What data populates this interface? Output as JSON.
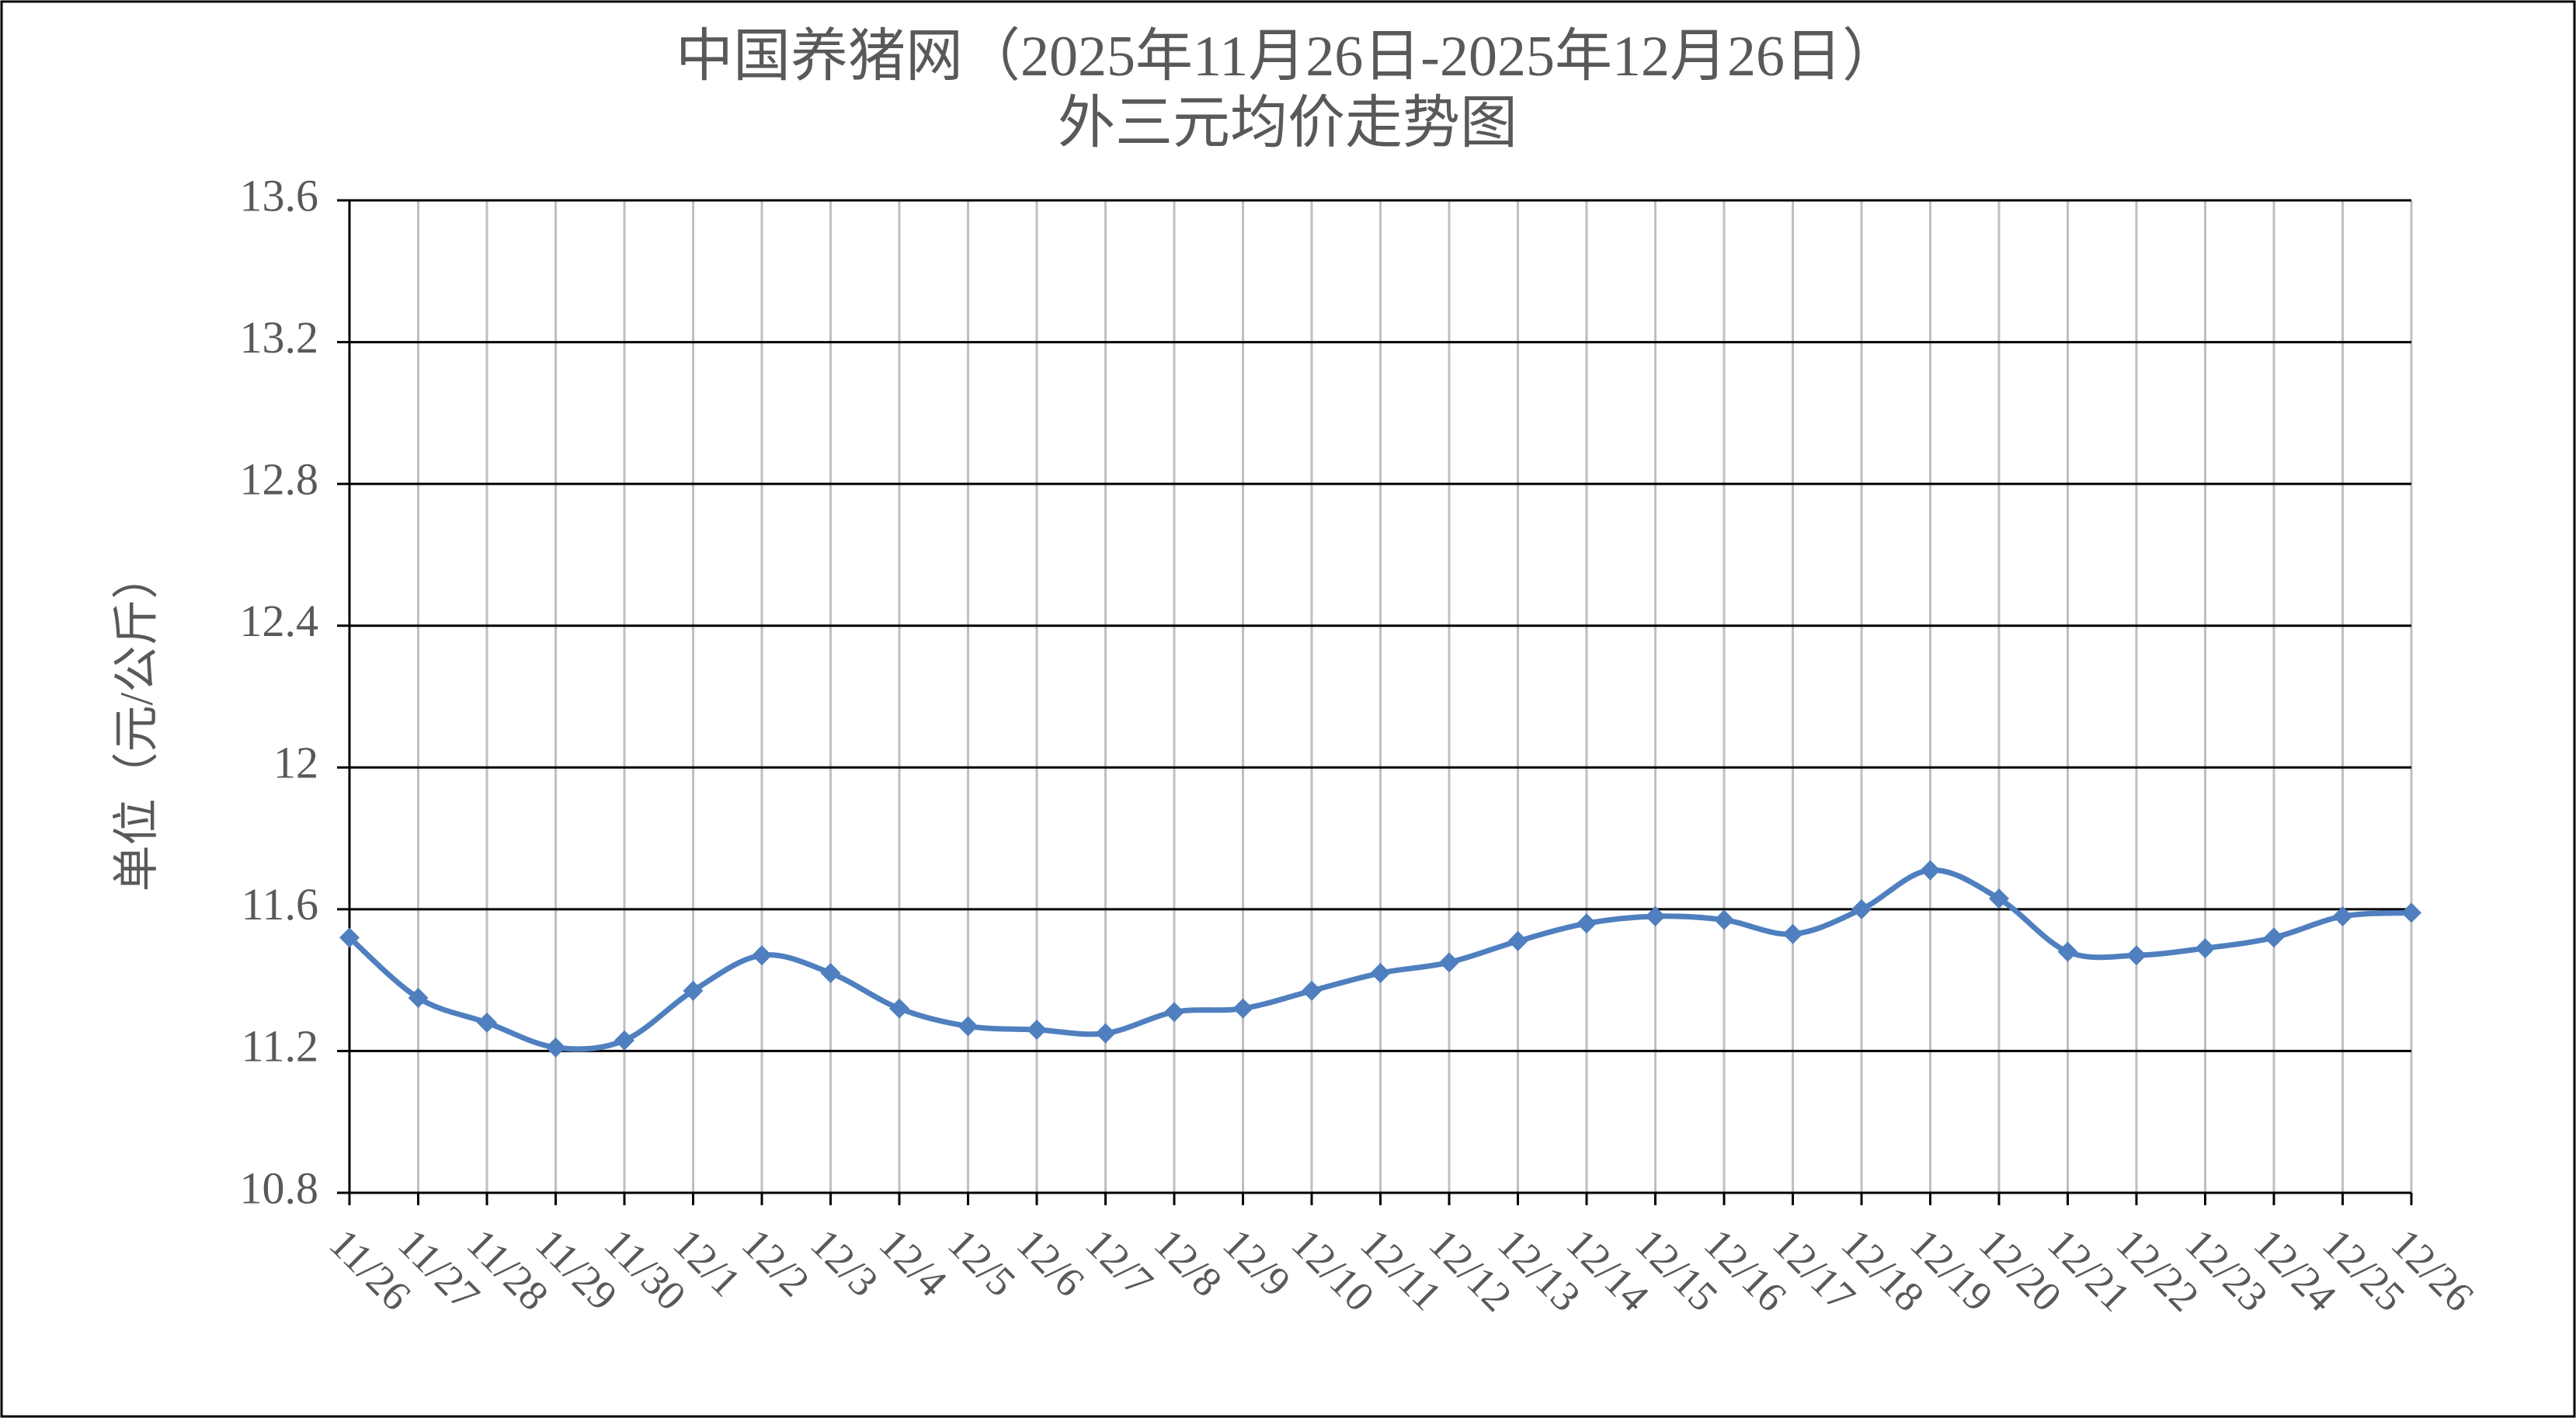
{
  "chart_data": {
    "type": "line",
    "title": [
      "中国养猪网（2025年11月26日-2025年12月26日）",
      "外三元均价走势图"
    ],
    "y_label": "单位（元/公斤）",
    "categories": [
      "11/26",
      "11/27",
      "11/28",
      "11/29",
      "11/30",
      "12/1",
      "12/2",
      "12/3",
      "12/4",
      "12/5",
      "12/6",
      "12/7",
      "12/8",
      "12/9",
      "12/10",
      "12/11",
      "12/12",
      "12/13",
      "12/14",
      "12/15",
      "12/16",
      "12/17",
      "12/18",
      "12/19",
      "12/20",
      "12/21",
      "12/22",
      "12/23",
      "12/24",
      "12/25",
      "12/26"
    ],
    "series": [
      {
        "name": "外三元",
        "color": "#4f7fbf",
        "values": [
          11.52,
          11.35,
          11.28,
          11.21,
          11.23,
          11.37,
          11.47,
          11.42,
          11.32,
          11.27,
          11.26,
          11.25,
          11.31,
          11.32,
          11.37,
          11.42,
          11.45,
          11.51,
          11.56,
          11.58,
          11.57,
          11.53,
          11.6,
          11.71,
          11.63,
          11.48,
          11.47,
          11.49,
          11.52,
          11.58,
          11.59
        ]
      }
    ],
    "ylim": [
      10.8,
      13.6
    ],
    "yticks": [
      10.8,
      11.2,
      11.6,
      12,
      12.4,
      12.8,
      13.2,
      13.6
    ],
    "grid": true,
    "smooth": true
  }
}
